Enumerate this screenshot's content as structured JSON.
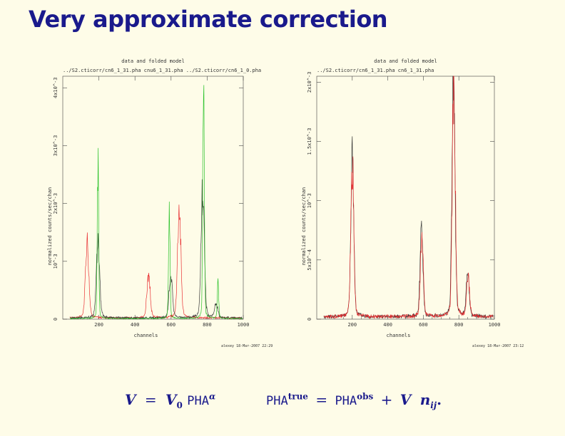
{
  "slide": {
    "title": "Very approximate correction"
  },
  "chart_data": [
    {
      "type": "line",
      "title": "data and folded model",
      "subtitle": "../S2.cticorr/cn6_1_31.pha cnu6_1_31.pha ../S2.cticorr/cn6_1_0.pha",
      "xlabel": "channels",
      "ylabel": "normalized counts/sec/chan",
      "xlim": [
        0,
        1000
      ],
      "ylim": [
        0,
        0.0042
      ],
      "x_ticks": [
        200,
        400,
        600,
        800,
        1000
      ],
      "y_tick_values": [
        0,
        0.001,
        0.002,
        0.003,
        0.004
      ],
      "y_tick_labels": [
        "0",
        "10^-3",
        "2x10^-3",
        "3x10^-3",
        "4x10^-3"
      ],
      "stamp": "alexey 18-Mar-2007 22:29",
      "series": [
        {
          "name": "red",
          "color": "#e8282b",
          "peaks": [
            [
              135,
              0.00128
            ],
            [
              475,
              0.00068
            ],
            [
              645,
              0.00182
            ]
          ],
          "width": 9,
          "baseline": 2e-05
        },
        {
          "name": "black",
          "color": "#333333",
          "peaks": [
            [
              195,
              0.00125
            ],
            [
              598,
              0.00072
            ],
            [
              775,
              0.00205
            ],
            [
              850,
              0.00021
            ]
          ],
          "width": 9,
          "baseline": 2e-05
        },
        {
          "name": "green",
          "color": "#22c022",
          "peaks": [
            [
              195,
              0.00245
            ],
            [
              590,
              0.00175
            ],
            [
              780,
              0.00415
            ],
            [
              860,
              0.00058
            ]
          ],
          "width": 4,
          "baseline": 1e-05
        }
      ]
    },
    {
      "type": "line",
      "title": "data and folded model",
      "subtitle": "../S2.cticorr/cn6_1_31.pha cn6_1_31.pha",
      "xlabel": "channels",
      "ylabel": "normalized counts/sec/chan",
      "xlim": [
        0,
        1000
      ],
      "ylim": [
        0,
        0.00205
      ],
      "x_ticks": [
        200,
        400,
        600,
        800,
        1000
      ],
      "y_tick_values": [
        0,
        0.0005,
        0.001,
        0.0015,
        0.002
      ],
      "y_tick_labels": [
        "0",
        "5x10^-4",
        "10^-3",
        "1.5x10^-3",
        "2x10^-3"
      ],
      "stamp": "alexey 18-Mar-2007 23:12",
      "series": [
        {
          "name": "black",
          "color": "#333333",
          "peaks": [
            [
              200,
              0.00128
            ],
            [
              590,
              0.00068
            ],
            [
              770,
              0.00208
            ],
            [
              850,
              0.00034
            ]
          ],
          "width": 8,
          "baseline": 2e-05
        },
        {
          "name": "red",
          "color": "#e8282b",
          "peaks": [
            [
              200,
              0.00127
            ],
            [
              592,
              0.00062
            ],
            [
              772,
              0.0019
            ],
            [
              852,
              0.00032
            ]
          ],
          "width": 8,
          "baseline": 2e-05
        }
      ]
    }
  ],
  "formulas": {
    "left": {
      "V": "V",
      "eq": "=",
      "V0": "V",
      "zero": "0",
      "pha": "PHA",
      "alpha": "α"
    },
    "right": {
      "pha_true": "PHA",
      "true": "true",
      "eq": "=",
      "pha_obs": "PHA",
      "obs": "obs",
      "plus": "+",
      "V": "V",
      "n": "n",
      "ij": "ij",
      "dot": "."
    }
  }
}
